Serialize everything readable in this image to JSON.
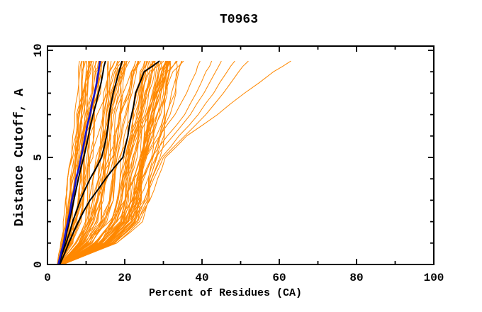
{
  "window": {
    "background": "#ffffff"
  },
  "chart_data": {
    "type": "line",
    "title": "T0963",
    "xlabel": "Percent of Residues (CA)",
    "ylabel": "Distance Cutoff, A",
    "xlim": [
      0,
      100
    ],
    "ylim": [
      0,
      10
    ],
    "grid": false,
    "legend": "none",
    "x_ticks": {
      "major": [
        0,
        20,
        40,
        60,
        80,
        100
      ],
      "minor": [
        10,
        30,
        50,
        70,
        90
      ],
      "labels": [
        "0",
        "20",
        "40",
        "60",
        "80",
        "100"
      ]
    },
    "y_ticks": {
      "major": [
        0,
        5,
        10
      ],
      "minor": [
        1,
        2,
        3,
        4,
        6,
        7,
        8,
        9
      ],
      "labels": [
        "0",
        "5",
        "10"
      ]
    },
    "colors": {
      "prediction_orange": "#ff8800",
      "highlight_blue": "#1414cc",
      "highlight_black": "#000000",
      "axis": "#000000",
      "background": "#ffffff"
    },
    "cutoffs": [
      0,
      1,
      2,
      3,
      4,
      5,
      6,
      7,
      8,
      9,
      9.5
    ],
    "highlighted_series": [
      {
        "name": "blue-model",
        "color": "#1414cc",
        "width": 2.6,
        "percents": [
          2.8,
          4.2,
          5.3,
          6.3,
          7.4,
          8.7,
          9.8,
          11,
          12.2,
          13.2,
          13.6
        ]
      },
      {
        "name": "black-model-1",
        "color": "#000000",
        "width": 2.0,
        "percents": [
          3,
          4.4,
          5.6,
          6.8,
          8,
          9.4,
          10.6,
          11.8,
          13.2,
          14.4,
          15
        ]
      },
      {
        "name": "black-model-2",
        "color": "#000000",
        "width": 2.0,
        "percents": [
          3,
          4.8,
          6.5,
          8.5,
          11,
          14,
          15.3,
          16,
          17,
          18.5,
          19.3
        ]
      },
      {
        "name": "black-model-3",
        "color": "#000000",
        "width": 2.0,
        "percents": [
          3.2,
          5.5,
          8,
          11,
          15,
          19.5,
          20.8,
          21.8,
          22.8,
          25,
          29
        ]
      }
    ],
    "outlier_series": [
      {
        "name": "outlier-1",
        "percents": [
          3.5,
          10,
          16,
          20,
          22.5,
          25.5,
          29,
          33,
          36,
          38.5,
          39.5
        ]
      },
      {
        "name": "outlier-2",
        "percents": [
          3.6,
          12,
          18,
          22,
          24.5,
          27,
          31,
          35.5,
          38.5,
          41,
          42.5
        ]
      },
      {
        "name": "outlier-3",
        "percents": [
          3.8,
          13.5,
          19.5,
          23.5,
          26,
          28,
          32.5,
          37,
          40.5,
          43.5,
          45
        ]
      },
      {
        "name": "outlier-4",
        "percents": [
          3.8,
          15,
          21,
          25,
          27,
          29.5,
          34,
          39,
          43,
          46.5,
          48.5
        ]
      },
      {
        "name": "outlier-5",
        "percents": [
          4,
          16,
          22,
          25.5,
          27.5,
          30,
          35.5,
          41,
          45.5,
          49.5,
          52
        ]
      },
      {
        "name": "outlier-6",
        "percents": [
          4,
          17,
          23,
          26.5,
          28.5,
          30.5,
          36,
          44,
          51,
          58.5,
          63
        ]
      }
    ],
    "prediction_bundle": {
      "count": 96,
      "left_envelope": [
        2.5,
        3.4,
        4.0,
        4.6,
        5.2,
        5.8,
        6.4,
        7.0,
        7.6,
        8.0,
        8.3
      ],
      "right_envelope": [
        4.0,
        18,
        24,
        26,
        27,
        28.5,
        30,
        31,
        32.5,
        34,
        35.5
      ]
    }
  }
}
